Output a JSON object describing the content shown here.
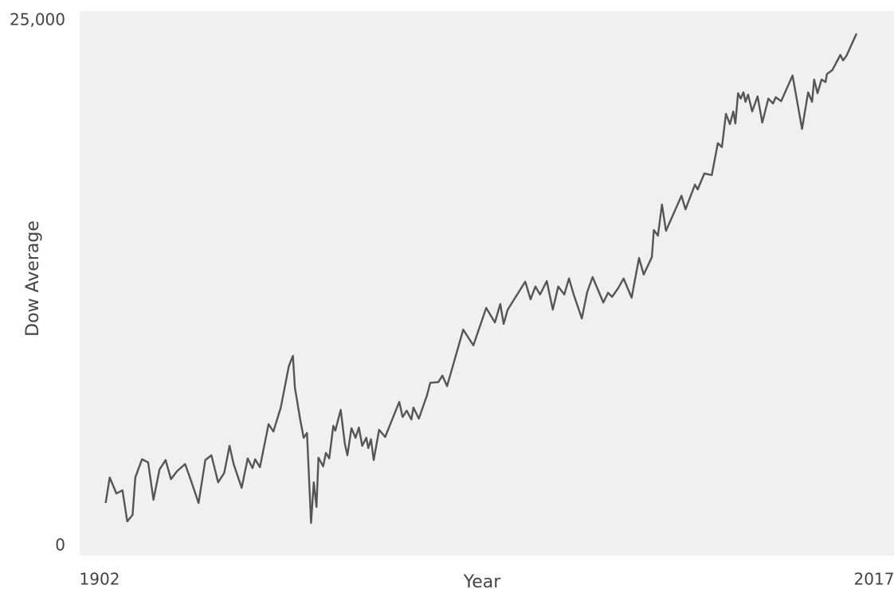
{
  "chart_data": {
    "type": "line",
    "x_label": "Year",
    "y_label": "Dow Average",
    "x": [
      1902.9,
      1903.5,
      1904.5,
      1905.4,
      1906.1,
      1906.9,
      1907.3,
      1908.3,
      1909.2,
      1910.0,
      1910.9,
      1911.8,
      1912.6,
      1913.5,
      1914.7,
      1915.5,
      1916.7,
      1917.7,
      1918.6,
      1919.6,
      1920.5,
      1921.3,
      1921.9,
      1923.1,
      1924.0,
      1924.7,
      1925.1,
      1925.8,
      1927.1,
      1927.8,
      1928.9,
      1930.1,
      1930.7,
      1931.0,
      1931.8,
      1932.3,
      1932.8,
      1933.4,
      1933.8,
      1934.2,
      1934.5,
      1935.2,
      1935.6,
      1936.1,
      1936.7,
      1937.0,
      1937.8,
      1938.4,
      1938.8,
      1939.4,
      1940.0,
      1940.5,
      1941.0,
      1941.6,
      1941.9,
      1942.3,
      1942.7,
      1943.5,
      1944.4,
      1946.5,
      1947.0,
      1947.6,
      1948.3,
      1948.6,
      1949.4,
      1950.6,
      1951.1,
      1952.3,
      1952.9,
      1953.6,
      1956.0,
      1956.8,
      1957.5,
      1959.4,
      1960.7,
      1961.5,
      1962.0,
      1962.6,
      1965.2,
      1966.0,
      1966.7,
      1967.4,
      1968.4,
      1969.3,
      1970.1,
      1971.0,
      1971.7,
      1972.4,
      1973.6,
      1974.4,
      1975.2,
      1976.8,
      1977.5,
      1978.1,
      1979.0,
      1979.8,
      1981.0,
      1982.1,
      1982.8,
      1984.0,
      1984.3,
      1984.9,
      1985.5,
      1986.1,
      1988.4,
      1989.0,
      1990.4,
      1990.8,
      1991.8,
      1992.9,
      1993.8,
      1994.4,
      1995.0,
      1995.6,
      1996.1,
      1996.4,
      1996.8,
      1997.2,
      1997.6,
      1997.9,
      1998.3,
      1998.9,
      1999.7,
      2000.4,
      2001.3,
      2002.0,
      2002.4,
      2003.2,
      2004.9,
      2006.3,
      2007.2,
      2007.8,
      2008.1,
      2008.6,
      2009.2,
      2009.8,
      2010.0,
      2010.8,
      2012.0,
      2012.4,
      2012.9,
      2014.4
    ],
    "series": [
      {
        "color": "#555555",
        "values": [
          2050,
          3260,
          2500,
          2650,
          1170,
          1480,
          3260,
          4130,
          3980,
          2200,
          3640,
          4090,
          3180,
          3560,
          3900,
          3180,
          2050,
          4090,
          4320,
          3030,
          3480,
          4770,
          3900,
          2770,
          4170,
          3710,
          4130,
          3750,
          5800,
          5450,
          6590,
          8560,
          9050,
          7540,
          5990,
          5150,
          5380,
          1100,
          3030,
          1860,
          4200,
          3790,
          4430,
          4170,
          5720,
          5490,
          6480,
          4890,
          4320,
          5610,
          5150,
          5640,
          4770,
          5150,
          4660,
          5080,
          4090,
          5530,
          5190,
          6860,
          6140,
          6440,
          6020,
          6590,
          6060,
          7160,
          7770,
          7800,
          8110,
          7610,
          10300,
          9890,
          9550,
          11330,
          10640,
          11520,
          10570,
          11250,
          12580,
          11740,
          12350,
          11970,
          12610,
          11250,
          12350,
          11970,
          12730,
          11970,
          10830,
          12080,
          12800,
          11590,
          12050,
          11860,
          12270,
          12730,
          11820,
          13710,
          12920,
          13750,
          15040,
          14770,
          16250,
          15000,
          16670,
          16020,
          17200,
          16970,
          17730,
          17650,
          19170,
          18980,
          20570,
          20080,
          20680,
          20110,
          21550,
          21290,
          21590,
          21140,
          21480,
          20680,
          21400,
          20150,
          21290,
          21060,
          21360,
          21170,
          22390,
          19850,
          21590,
          21140,
          22200,
          21550,
          22200,
          22080,
          22460,
          22650,
          23370,
          23110,
          23330,
          24390
        ]
      }
    ],
    "xlim": [
      1902,
      2017
    ],
    "xticks": [
      1902,
      2017
    ],
    "ylim": [
      0,
      25000
    ],
    "yticks": [
      0,
      {
        "value": 25000,
        "label": "25,000"
      }
    ],
    "background": "#f0f0f0",
    "grid": false
  }
}
